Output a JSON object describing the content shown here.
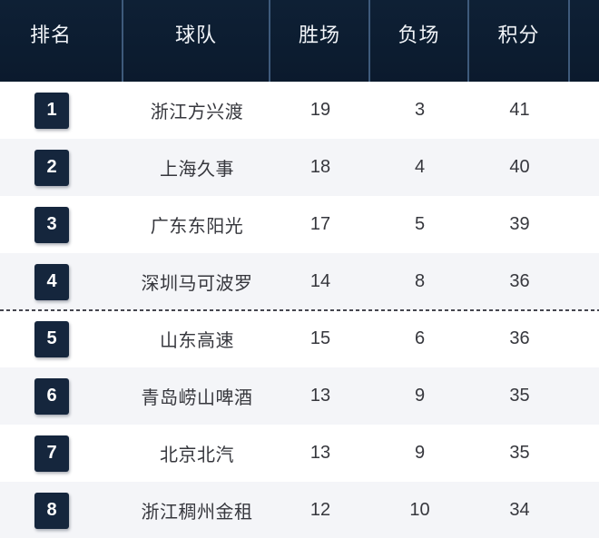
{
  "table": {
    "columns": [
      {
        "key": "rank",
        "label": "排名"
      },
      {
        "key": "team",
        "label": "球队"
      },
      {
        "key": "wins",
        "label": "胜场"
      },
      {
        "key": "losses",
        "label": "负场"
      },
      {
        "key": "points",
        "label": "积分"
      }
    ],
    "rows": [
      {
        "rank": "1",
        "team": "浙江方兴渡",
        "wins": "19",
        "losses": "3",
        "points": "41"
      },
      {
        "rank": "2",
        "team": "上海久事",
        "wins": "18",
        "losses": "4",
        "points": "40"
      },
      {
        "rank": "3",
        "team": "广东东阳光",
        "wins": "17",
        "losses": "5",
        "points": "39"
      },
      {
        "rank": "4",
        "team": "深圳马可波罗",
        "wins": "14",
        "losses": "8",
        "points": "36"
      },
      {
        "rank": "5",
        "team": "山东高速",
        "wins": "15",
        "losses": "6",
        "points": "36"
      },
      {
        "rank": "6",
        "team": "青岛崂山啤酒",
        "wins": "13",
        "losses": "9",
        "points": "35"
      },
      {
        "rank": "7",
        "team": "北京北汽",
        "wins": "13",
        "losses": "9",
        "points": "35"
      },
      {
        "rank": "8",
        "team": "浙江稠州金租",
        "wins": "12",
        "losses": "10",
        "points": "34"
      }
    ],
    "cutoff_after_rank": 4
  },
  "colors": {
    "header_bg": "#0d1c30",
    "header_divider": "#3e5a7b",
    "header_text": "#f2f5f9",
    "rank_badge_bg": "#15263d",
    "row_alt_bg": "#f4f5f8",
    "body_text": "#36373d",
    "cutoff_dash": "#45464e"
  },
  "chart_data": {
    "type": "table",
    "title": "",
    "columns": [
      "排名",
      "球队",
      "胜场",
      "负场",
      "积分"
    ],
    "rows": [
      [
        1,
        "浙江方兴渡",
        19,
        3,
        41
      ],
      [
        2,
        "上海久事",
        18,
        4,
        40
      ],
      [
        3,
        "广东东阳光",
        17,
        5,
        39
      ],
      [
        4,
        "深圳马可波罗",
        14,
        8,
        36
      ],
      [
        5,
        "山东高速",
        15,
        6,
        36
      ],
      [
        6,
        "青岛崂山啤酒",
        13,
        9,
        35
      ],
      [
        7,
        "北京北汽",
        13,
        9,
        35
      ],
      [
        8,
        "浙江稠州金租",
        12,
        10,
        34
      ]
    ],
    "annotations": [
      "dashed playoff cutoff line between rank 4 and rank 5"
    ]
  }
}
